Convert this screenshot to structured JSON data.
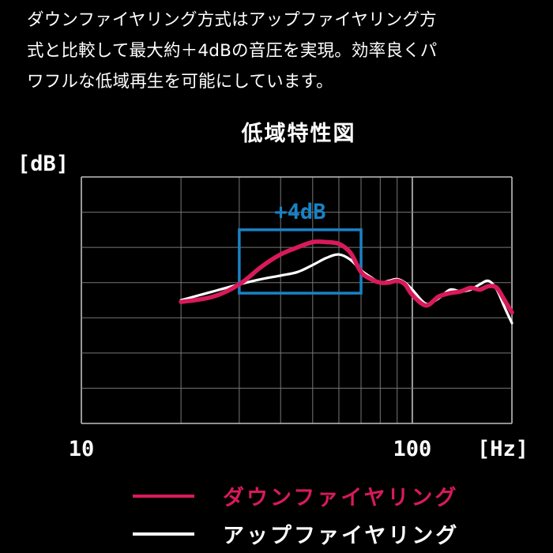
{
  "intro": {
    "lines": [
      "ダウンファイヤリング方式はアップファイヤリング方",
      "式と比較して最大約＋4dBの音圧を実現。効率良くパ",
      "ワフルな低域再生を可能にしています。"
    ]
  },
  "chart_data": {
    "type": "line",
    "title": "低域特性図",
    "ylabel": "[dB]",
    "xlabel": "[Hz]",
    "x_scale": "log",
    "xlim": [
      10,
      200
    ],
    "x_ticks": [
      {
        "value": 10,
        "label": "10"
      },
      {
        "value": 100,
        "label": "100"
      }
    ],
    "ylim": [
      0,
      7
    ],
    "grid": true,
    "annotation": {
      "label": "+4dB",
      "x_range": [
        30,
        70
      ],
      "y_range": [
        3.7,
        5.5
      ],
      "color": "#1a82c4"
    },
    "series": [
      {
        "name": "ダウンファイヤリング",
        "color": "#d81a5b",
        "x": [
          20,
          25,
          30,
          35,
          40,
          45,
          50,
          55,
          60,
          65,
          70,
          75,
          80,
          85,
          90,
          95,
          100,
          110,
          120,
          130,
          140,
          150,
          160,
          170,
          180,
          190,
          200
        ],
        "y": [
          3.45,
          3.6,
          3.95,
          4.45,
          4.8,
          5.0,
          5.15,
          5.15,
          5.1,
          4.85,
          4.3,
          4.1,
          4.0,
          4.0,
          4.05,
          3.95,
          3.65,
          3.35,
          3.6,
          3.7,
          3.75,
          3.85,
          3.8,
          3.9,
          3.85,
          3.5,
          3.15
        ]
      },
      {
        "name": "アップファイヤリング",
        "color": "#ffffff",
        "x": [
          20,
          25,
          30,
          35,
          40,
          45,
          50,
          55,
          60,
          65,
          70,
          75,
          80,
          85,
          90,
          95,
          100,
          110,
          120,
          130,
          140,
          150,
          160,
          170,
          180,
          190,
          200
        ],
        "y": [
          3.5,
          3.75,
          3.95,
          4.1,
          4.2,
          4.3,
          4.5,
          4.7,
          4.8,
          4.65,
          4.35,
          4.15,
          4.0,
          4.05,
          4.1,
          4.0,
          3.8,
          3.4,
          3.55,
          3.8,
          3.75,
          3.8,
          3.95,
          4.05,
          3.8,
          3.3,
          2.85
        ]
      }
    ]
  }
}
